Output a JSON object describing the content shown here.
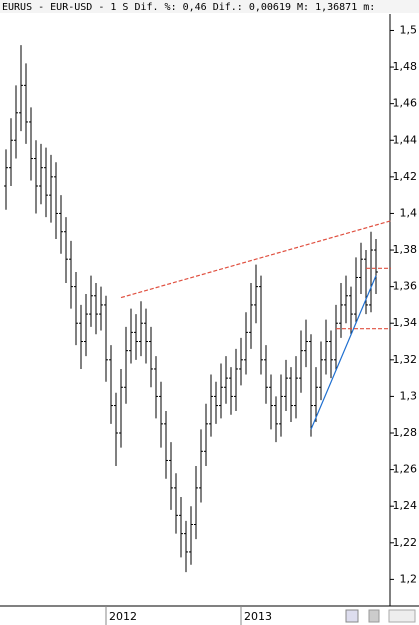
{
  "chart_data": {
    "type": "ohlc",
    "title": "EURUS - EUR-USD -  1 S Dif. %: 0,46 Dif.: 0,00619 M: 1,36871 m:",
    "color": "#000000",
    "categories": [
      null,
      null,
      null,
      null,
      null,
      null,
      null,
      null,
      null,
      null,
      null,
      null,
      null,
      null,
      null,
      null,
      null,
      null,
      null,
      null,
      "2012",
      null,
      null,
      null,
      null,
      null,
      null,
      null,
      null,
      null,
      null,
      null,
      null,
      null,
      null,
      null,
      null,
      null,
      null,
      null,
      null,
      null,
      null,
      null,
      null,
      null,
      null,
      "2013",
      null,
      null,
      null,
      null,
      null,
      null,
      null,
      null,
      null,
      null,
      null,
      null,
      null,
      null,
      null,
      null,
      null,
      null,
      null,
      null,
      null,
      null,
      null,
      null,
      null,
      null,
      null
    ],
    "open": [
      1.415,
      1.425,
      1.44,
      1.455,
      1.47,
      1.45,
      1.43,
      1.415,
      1.425,
      1.41,
      1.42,
      1.4,
      1.39,
      1.375,
      1.36,
      1.34,
      1.33,
      1.345,
      1.355,
      1.345,
      1.35,
      1.32,
      1.295,
      1.28,
      1.305,
      1.325,
      1.335,
      1.33,
      1.34,
      1.33,
      1.315,
      1.3,
      1.285,
      1.265,
      1.25,
      1.235,
      1.225,
      1.215,
      1.23,
      1.25,
      1.27,
      1.285,
      1.3,
      1.295,
      1.305,
      1.31,
      1.3,
      1.315,
      1.32,
      1.335,
      1.35,
      1.36,
      1.32,
      1.305,
      1.295,
      1.285,
      1.3,
      1.31,
      1.295,
      1.31,
      1.325,
      1.33,
      1.295,
      1.305,
      1.32,
      1.33,
      1.32,
      1.34,
      1.35,
      1.355,
      1.345,
      1.365,
      1.375,
      1.35,
      1.38
    ],
    "high": [
      1.435,
      1.452,
      1.47,
      1.492,
      1.482,
      1.458,
      1.44,
      1.438,
      1.436,
      1.432,
      1.428,
      1.41,
      1.398,
      1.385,
      1.368,
      1.35,
      1.356,
      1.366,
      1.362,
      1.36,
      1.355,
      1.328,
      1.302,
      1.315,
      1.338,
      1.348,
      1.345,
      1.352,
      1.348,
      1.338,
      1.322,
      1.308,
      1.292,
      1.275,
      1.258,
      1.245,
      1.232,
      1.24,
      1.262,
      1.282,
      1.296,
      1.312,
      1.308,
      1.318,
      1.322,
      1.316,
      1.326,
      1.332,
      1.346,
      1.362,
      1.372,
      1.366,
      1.328,
      1.312,
      1.3,
      1.312,
      1.32,
      1.316,
      1.322,
      1.336,
      1.342,
      1.334,
      1.316,
      1.33,
      1.342,
      1.336,
      1.35,
      1.362,
      1.366,
      1.36,
      1.376,
      1.384,
      1.38,
      1.39,
      1.386
    ],
    "low": [
      1.402,
      1.415,
      1.43,
      1.445,
      1.438,
      1.418,
      1.4,
      1.405,
      1.398,
      1.395,
      1.386,
      1.378,
      1.362,
      1.348,
      1.328,
      1.315,
      1.322,
      1.338,
      1.334,
      1.336,
      1.308,
      1.285,
      1.262,
      1.272,
      1.296,
      1.318,
      1.32,
      1.322,
      1.318,
      1.305,
      1.288,
      1.272,
      1.255,
      1.238,
      1.225,
      1.212,
      1.204,
      1.208,
      1.222,
      1.242,
      1.262,
      1.278,
      1.285,
      1.288,
      1.296,
      1.29,
      1.292,
      1.306,
      1.312,
      1.326,
      1.34,
      1.312,
      1.296,
      1.282,
      1.275,
      1.278,
      1.292,
      1.286,
      1.288,
      1.302,
      1.316,
      1.278,
      1.286,
      1.298,
      1.312,
      1.31,
      1.314,
      1.332,
      1.34,
      1.334,
      1.34,
      1.356,
      1.345,
      1.346,
      1.356
    ],
    "close": [
      1.425,
      1.44,
      1.455,
      1.47,
      1.45,
      1.43,
      1.415,
      1.425,
      1.41,
      1.42,
      1.4,
      1.39,
      1.375,
      1.36,
      1.34,
      1.33,
      1.345,
      1.355,
      1.345,
      1.35,
      1.32,
      1.295,
      1.28,
      1.305,
      1.325,
      1.335,
      1.33,
      1.34,
      1.33,
      1.315,
      1.3,
      1.285,
      1.265,
      1.25,
      1.235,
      1.225,
      1.215,
      1.23,
      1.25,
      1.27,
      1.285,
      1.3,
      1.295,
      1.305,
      1.31,
      1.3,
      1.315,
      1.32,
      1.335,
      1.35,
      1.36,
      1.32,
      1.305,
      1.295,
      1.285,
      1.3,
      1.31,
      1.295,
      1.31,
      1.325,
      1.33,
      1.295,
      1.305,
      1.32,
      1.33,
      1.32,
      1.34,
      1.35,
      1.355,
      1.345,
      1.365,
      1.375,
      1.35,
      1.38,
      1.368
    ],
    "ylim": [
      1.186,
      1.509
    ],
    "yticks": [
      {
        "value": 1.2,
        "label": "1,2"
      },
      {
        "value": 1.22,
        "label": "1,22"
      },
      {
        "value": 1.24,
        "label": "1,24"
      },
      {
        "value": 1.26,
        "label": "1,26"
      },
      {
        "value": 1.28,
        "label": "1,28"
      },
      {
        "value": 1.3,
        "label": "1,3"
      },
      {
        "value": 1.32,
        "label": "1,32"
      },
      {
        "value": 1.34,
        "label": "1,34"
      },
      {
        "value": 1.36,
        "label": "1,36"
      },
      {
        "value": 1.38,
        "label": "1,38"
      },
      {
        "value": 1.4,
        "label": "1,4"
      },
      {
        "value": 1.42,
        "label": "1,42"
      },
      {
        "value": 1.44,
        "label": "1,44"
      },
      {
        "value": 1.46,
        "label": "1,46"
      },
      {
        "value": 1.48,
        "label": "1,48"
      },
      {
        "value": 1.5,
        "label": "1,5"
      }
    ],
    "grid": false,
    "lines": [
      {
        "color": "#e05040",
        "dashed": true,
        "x": [
          23,
          77
        ],
        "values": [
          1.354,
          1.396
        ]
      },
      {
        "color": "#1f6fd0",
        "dashed": false,
        "x": [
          61,
          74
        ],
        "values": [
          1.282,
          1.366
        ]
      },
      {
        "color": "#e05040",
        "dashed": true,
        "x": [
          66,
          77
        ],
        "values": [
          1.337,
          1.337
        ]
      },
      {
        "color": "#e05040",
        "dashed": true,
        "x": [
          72,
          77
        ],
        "values": [
          1.37,
          1.37
        ]
      }
    ]
  }
}
